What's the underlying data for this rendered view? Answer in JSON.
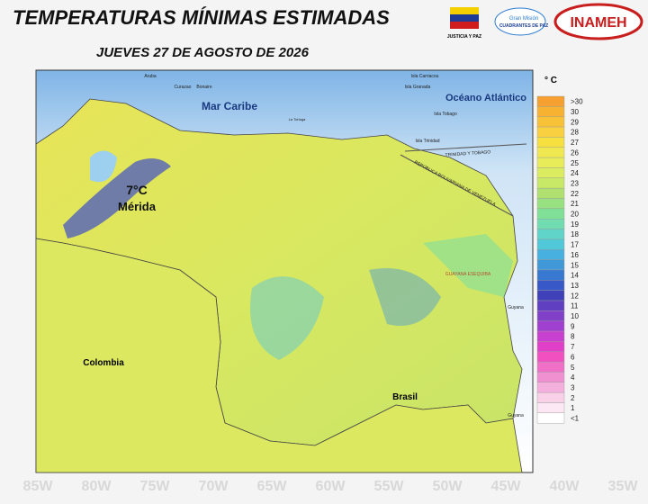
{
  "header": {
    "title": "TEMPERATURAS MÍNIMAS ESTIMADAS",
    "subtitle": "JUEVES 27 DE AGOSTO DE 2026",
    "logos": [
      "JUSTICIA Y PAZ",
      "Gran Misión",
      "CUADRANTES DE PAZ",
      "INAMEH"
    ]
  },
  "map": {
    "labels": {
      "sea": "Mar Caribe",
      "ocean": "Océano Atlántico",
      "colombia": "Colombia",
      "brasil": "Brasil",
      "temp": "7°C",
      "city": "Mérida",
      "esequibo": "GUAYANA ESEQUIBA",
      "guyana": "Guyana",
      "guyana_south": "Guyana",
      "tt": "TRINIDAD Y TOBAGO",
      "rbv": "REPÚBLICA BOLIVARIANA DE VENEZUELA",
      "aruba": "Aruba",
      "curazao": "Curazao",
      "bonaire": "Bonaire",
      "carriacou": "Isla Carriacou",
      "granada": "Isla Granada",
      "tobago": "Isla Tobago",
      "trinidad": "Isla Trinidad",
      "tortuga": "La Tortuga"
    },
    "background_labels": [
      "85W",
      "80W",
      "75W",
      "70W",
      "65W",
      "60W",
      "55W",
      "50W",
      "45W",
      "40W",
      "35W"
    ]
  },
  "legend": {
    "title": "° C",
    "items": [
      {
        "label": ">30",
        "color": "#f5a030"
      },
      {
        "label": "30",
        "color": "#f7b232"
      },
      {
        "label": "29",
        "color": "#f8c238"
      },
      {
        "label": "28",
        "color": "#f8d040"
      },
      {
        "label": "27",
        "color": "#f5e040"
      },
      {
        "label": "26",
        "color": "#f0e850"
      },
      {
        "label": "25",
        "color": "#e8ec58"
      },
      {
        "label": "24",
        "color": "#dcec60"
      },
      {
        "label": "23",
        "color": "#c8e868"
      },
      {
        "label": "22",
        "color": "#b0e070"
      },
      {
        "label": "21",
        "color": "#98e080"
      },
      {
        "label": "20",
        "color": "#80e098"
      },
      {
        "label": "19",
        "color": "#70dcb0"
      },
      {
        "label": "18",
        "color": "#60d4c8"
      },
      {
        "label": "17",
        "color": "#50c8d8"
      },
      {
        "label": "16",
        "color": "#48b0e0"
      },
      {
        "label": "15",
        "color": "#4098d8"
      },
      {
        "label": "14",
        "color": "#3878d0"
      },
      {
        "label": "13",
        "color": "#3858c8"
      },
      {
        "label": "12",
        "color": "#4040b8"
      },
      {
        "label": "11",
        "color": "#6040c0"
      },
      {
        "label": "10",
        "color": "#8040c8"
      },
      {
        "label": "9",
        "color": "#a040d0"
      },
      {
        "label": "8",
        "color": "#c840d0"
      },
      {
        "label": "7",
        "color": "#e040c8"
      },
      {
        "label": "6",
        "color": "#f050c0"
      },
      {
        "label": "5",
        "color": "#f070c8"
      },
      {
        "label": "4",
        "color": "#f090d0"
      },
      {
        "label": "3",
        "color": "#f4b0dc"
      },
      {
        "label": "2",
        "color": "#f8d0e8"
      },
      {
        "label": "1",
        "color": "#fce8f4"
      },
      {
        "label": "<1",
        "color": "#ffffff"
      }
    ]
  }
}
